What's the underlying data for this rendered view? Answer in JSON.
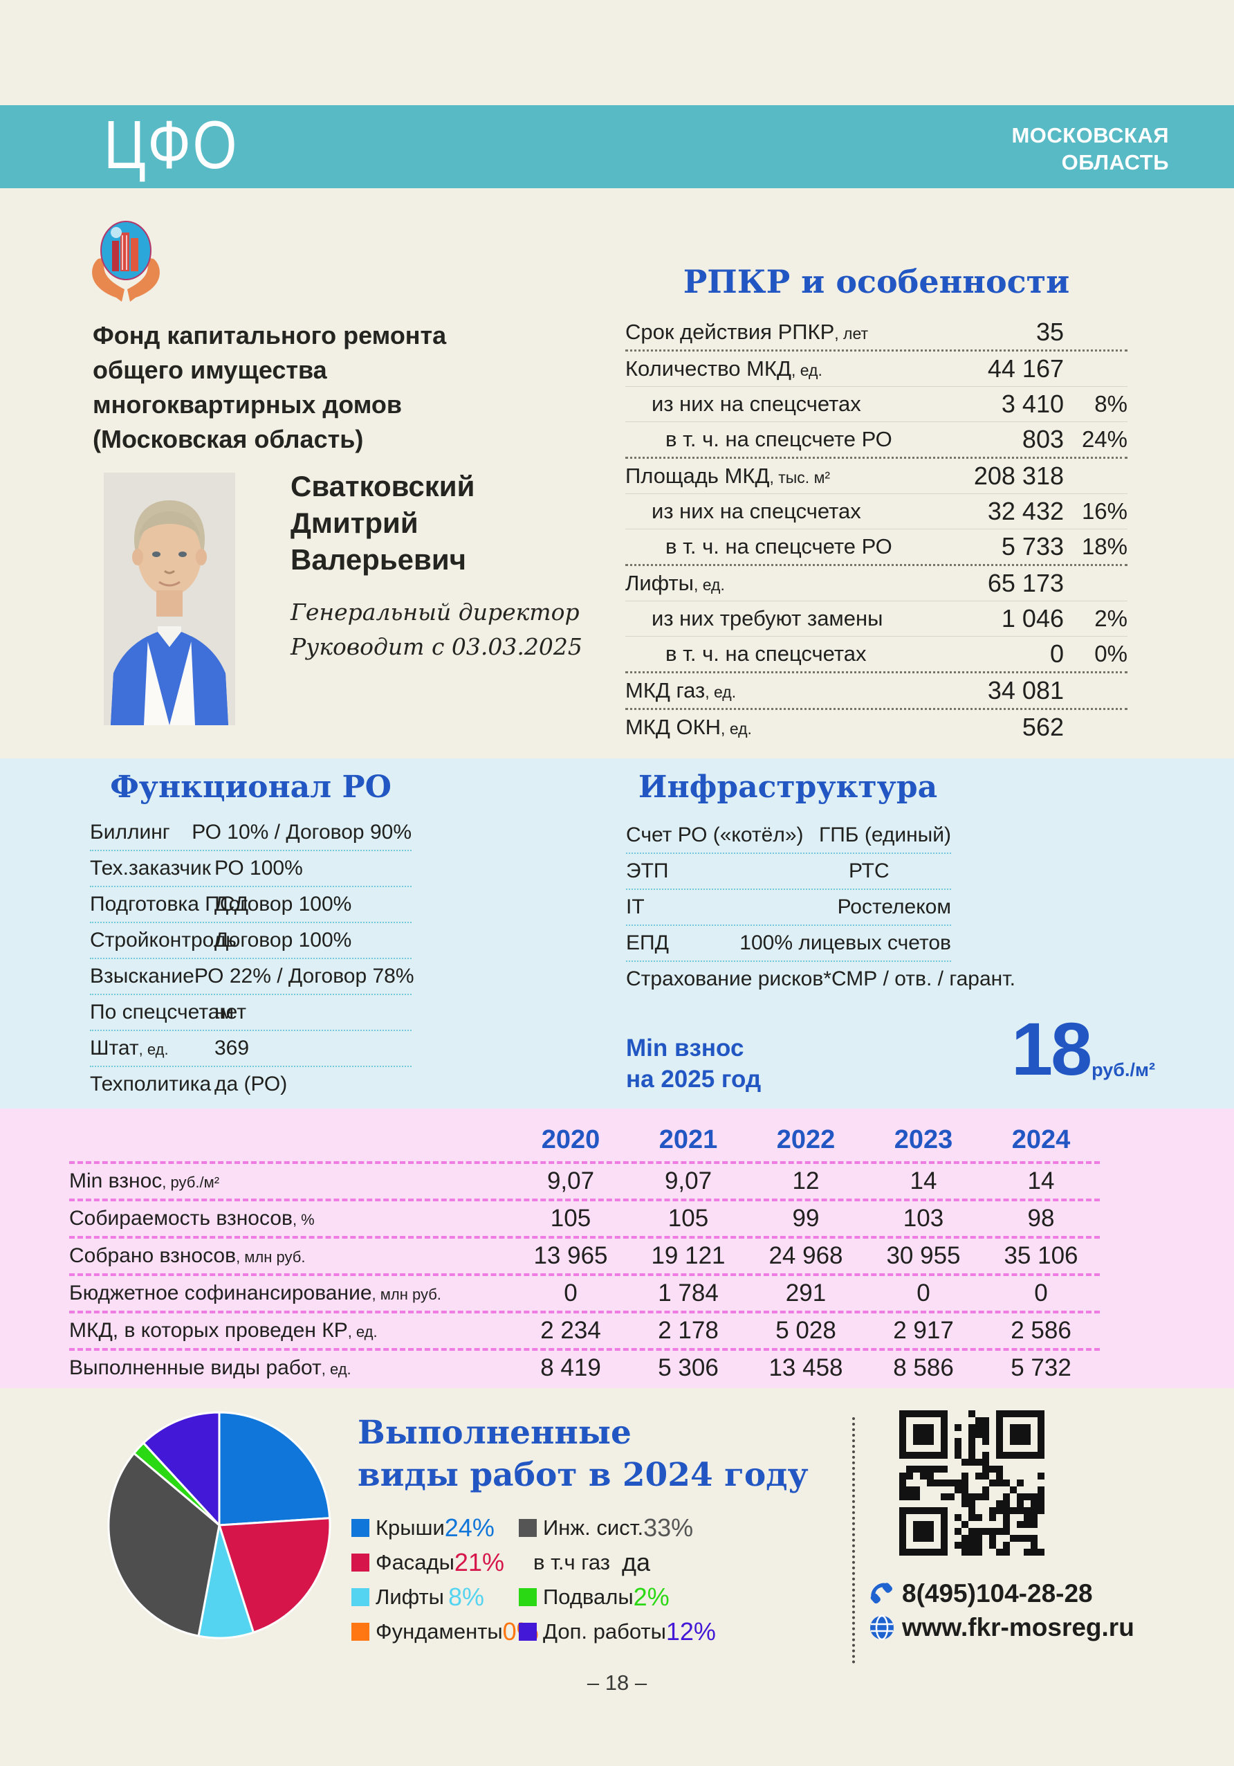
{
  "header": {
    "district": "ЦФО",
    "region_line1": "МОСКОВСКАЯ",
    "region_line2": "ОБЛАСТЬ"
  },
  "fund": {
    "name_lines": [
      "Фонд капитального ремонта",
      "общего имущества",
      "многоквартирных домов",
      "(Московская область)"
    ]
  },
  "director": {
    "name_line1": "Сватковский",
    "name_line2": "Дмитрий",
    "name_line3": "Валерьевич",
    "position": "Генеральный директор",
    "tenure": "Руководит с 03.03.2025"
  },
  "rpkr": {
    "title": "РПКР и особенности",
    "rows": [
      {
        "label": "Срок действия РПКР",
        "unit": ", лет",
        "value": "35",
        "pct": "",
        "indent": 0,
        "sep": "dot"
      },
      {
        "label": "Количество МКД",
        "unit": ", ед.",
        "value": "44 167",
        "pct": "",
        "indent": 0,
        "sep": "thin"
      },
      {
        "label": "из них на спецсчетах",
        "unit": "",
        "value": "3 410",
        "pct": "8%",
        "indent": 1,
        "sep": "thin"
      },
      {
        "label": "в т. ч. на спецсчете РО",
        "unit": "",
        "value": "803",
        "pct": "24%",
        "indent": 2,
        "sep": "dot"
      },
      {
        "label": "Площадь МКД",
        "unit": ", тыс. м²",
        "value": "208 318",
        "pct": "",
        "indent": 0,
        "sep": "thin"
      },
      {
        "label": "из них на спецсчетах",
        "unit": "",
        "value": "32 432",
        "pct": "16%",
        "indent": 1,
        "sep": "thin"
      },
      {
        "label": "в т. ч. на спецсчете РО",
        "unit": "",
        "value": "5 733",
        "pct": "18%",
        "indent": 2,
        "sep": "dot"
      },
      {
        "label": "Лифты",
        "unit": ", ед.",
        "value": "65 173",
        "pct": "",
        "indent": 0,
        "sep": "thin"
      },
      {
        "label": "из них требуют замены",
        "unit": "",
        "value": "1 046",
        "pct": "2%",
        "indent": 1,
        "sep": "thin"
      },
      {
        "label": "в т. ч. на спецсчетах",
        "unit": "",
        "value": "0",
        "pct": "0%",
        "indent": 2,
        "sep": "dot"
      },
      {
        "label": "МКД газ",
        "unit": ", ед.",
        "value": "34 081",
        "pct": "",
        "indent": 0,
        "sep": "dot"
      },
      {
        "label": "МКД ОКН",
        "unit": ", ед.",
        "value": "562",
        "pct": "",
        "indent": 0,
        "sep": "none"
      }
    ]
  },
  "functional": {
    "title": "Функционал РО",
    "rows": [
      {
        "label": "Биллинг",
        "suffix": "",
        "value": "РО 10% / Договор 90%"
      },
      {
        "label": "Тех.заказчик",
        "suffix": "",
        "value": "РО 100%"
      },
      {
        "label": "Подготовка ПСД",
        "suffix": "",
        "value": "Договор 100%"
      },
      {
        "label": "Стройконтроль",
        "suffix": "",
        "value": "Договор 100%"
      },
      {
        "label": "Взыскание",
        "suffix": "",
        "value": "РО 22% / Договор 78%"
      },
      {
        "label": "По спецсчетам",
        "suffix": "",
        "value": "нет"
      },
      {
        "label": "Штат",
        "suffix": ", ед.",
        "value": "369"
      },
      {
        "label": "Техполитика",
        "suffix": "",
        "value": "да (РО)"
      }
    ]
  },
  "infrastructure": {
    "title": "Инфраструктура",
    "rows": [
      {
        "label": "Счет РО («котёл»)",
        "value": "ГПБ (единый)"
      },
      {
        "label": "ЭТП",
        "value": "РТС"
      },
      {
        "label": "IT",
        "value": "Ростелеком"
      },
      {
        "label": "ЕПД",
        "value": "100% лицевых счетов"
      },
      {
        "label": "Страхование рисков*",
        "value": "СМР / отв. / гарант."
      }
    ]
  },
  "min_fee": {
    "label_line1": "Min взнос",
    "label_line2": "на 2025 год",
    "value": "18",
    "unit": "руб./м²"
  },
  "years_table": {
    "years": [
      "2020",
      "2021",
      "2022",
      "2023",
      "2024"
    ],
    "rows": [
      {
        "label": "Min взнос",
        "suffix": ", руб./м²",
        "values": [
          "9,07",
          "9,07",
          "12",
          "14",
          "14"
        ]
      },
      {
        "label": "Собираемость взносов",
        "suffix": ", %",
        "values": [
          "105",
          "105",
          "99",
          "103",
          "98"
        ]
      },
      {
        "label": "Собрано взносов",
        "suffix": ", млн руб.",
        "values": [
          "13 965",
          "19 121",
          "24 968",
          "30 955",
          "35 106"
        ]
      },
      {
        "label": "Бюджетное софинансирование",
        "suffix": ", млн руб.",
        "values": [
          "0",
          "1 784",
          "291",
          "0",
          "0"
        ]
      },
      {
        "label": "МКД, в которых проведен КР",
        "suffix": ", ед.",
        "values": [
          "2 234",
          "2 178",
          "5 028",
          "2 917",
          "2 586"
        ]
      },
      {
        "label": "Выполненные виды работ",
        "suffix": ", ед.",
        "values": [
          "8 419",
          "5 306",
          "13 458",
          "8 586",
          "5 732"
        ]
      }
    ]
  },
  "works": {
    "title_line1": "Выполненные",
    "title_line2": "виды работ в 2024 году",
    "legend_left": [
      {
        "label": "Крыши",
        "pct": "24%",
        "color": "#1076d9"
      },
      {
        "label": "Фасады",
        "pct": "21%",
        "color": "#d6164a"
      },
      {
        "label": "Лифты",
        "pct": "8%",
        "color": "#54d4f0"
      },
      {
        "label": "Фундаменты",
        "pct": "0%",
        "color": "#ff7712"
      }
    ],
    "legend_right": [
      {
        "label": "Инж. сист.",
        "pct": "33%",
        "color": "#555555"
      },
      {
        "label": "в т.ч газ",
        "pct": "да",
        "color": "",
        "plain": true
      },
      {
        "label": "Подвалы",
        "pct": "2%",
        "color": "#2ad813"
      },
      {
        "label": "Доп. работы",
        "pct": "12%",
        "color": "#4318d6"
      }
    ]
  },
  "chart_data": {
    "type": "pie",
    "title": "Выполненные виды работ в 2024 году",
    "labels": [
      "Крыши",
      "Фасады",
      "Лифты",
      "Инж. сист.",
      "Подвалы",
      "Доп. работы",
      "Фундаменты"
    ],
    "values": [
      24,
      21,
      8,
      33,
      2,
      12,
      0
    ],
    "colors": [
      "#1076d9",
      "#d6164a",
      "#54d4f0",
      "#4e4e4e",
      "#2ad813",
      "#4318d6",
      "#ff7712"
    ],
    "start": "top",
    "direction": "clockwise",
    "legend_position": "right"
  },
  "contacts": {
    "phone": "8(495)104-28-28",
    "website": "www.fkr-mosreg.ru"
  },
  "page_number": "– 18 –"
}
